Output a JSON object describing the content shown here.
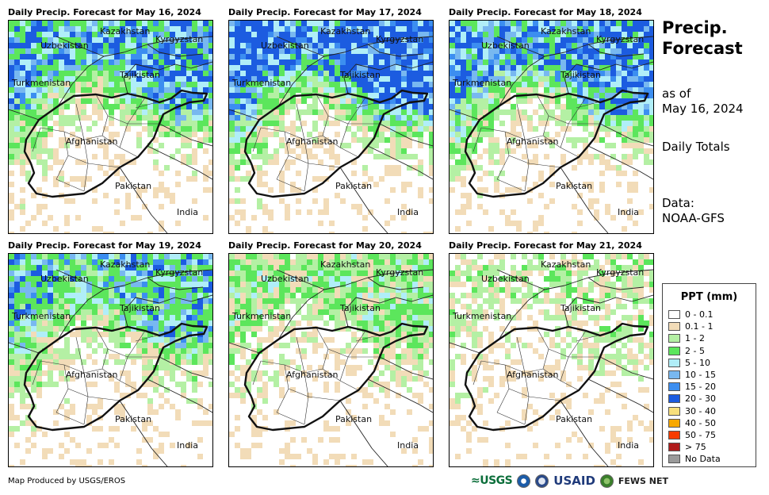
{
  "panels": [
    {
      "title": "Daily Precip. Forecast for May 16, 2024",
      "intensity": 0.85,
      "seed": 11
    },
    {
      "title": "Daily Precip. Forecast for May 17, 2024",
      "intensity": 1.0,
      "seed": 23
    },
    {
      "title": "Daily Precip. Forecast for May 18, 2024",
      "intensity": 0.9,
      "seed": 37
    },
    {
      "title": "Daily Precip. Forecast for May 19, 2024",
      "intensity": 0.75,
      "seed": 41
    },
    {
      "title": "Daily Precip. Forecast for May 20, 2024",
      "intensity": 0.5,
      "seed": 53
    },
    {
      "title": "Daily Precip. Forecast for May 21, 2024",
      "intensity": 0.3,
      "seed": 67
    }
  ],
  "country_labels": {
    "kazakhstan": "Kazakhstan",
    "uzbekistan": "Uzbekistan",
    "kyrgyzstan": "Kyrgyzstan",
    "tajikistan": "Tajikistan",
    "turkmenistan": "Turkmenistan",
    "afghanistan": "Afghanistan",
    "pakistan": "Pakistan",
    "india": "India"
  },
  "side": {
    "title_line1": "Precip.",
    "title_line2": "Forecast",
    "asof_line1": "as of",
    "asof_line2": "May 16, 2024",
    "totals": "Daily Totals",
    "data_line1": "Data:",
    "data_line2": "NOAA-GFS"
  },
  "legend": {
    "title": "PPT (mm)",
    "items": [
      {
        "label": "0 - 0.1",
        "color": "#ffffff"
      },
      {
        "label": "0.1 - 1",
        "color": "#f2dcb8"
      },
      {
        "label": "1 - 2",
        "color": "#b4f0a4"
      },
      {
        "label": "2 - 5",
        "color": "#5ce65c"
      },
      {
        "label": "5 - 10",
        "color": "#b0eef8"
      },
      {
        "label": "10 - 15",
        "color": "#78b8f0"
      },
      {
        "label": "15 - 20",
        "color": "#3c8ef0"
      },
      {
        "label": "20 - 30",
        "color": "#1c5ce0"
      },
      {
        "label": "30 - 40",
        "color": "#f8e07c"
      },
      {
        "label": "40 - 50",
        "color": "#f8a800"
      },
      {
        "label": "50 - 75",
        "color": "#f83c00"
      },
      {
        "label": "> 75",
        "color": "#b01c1c"
      },
      {
        "label": "No Data",
        "color": "#9a9a9a"
      }
    ]
  },
  "footer": {
    "credit": "Map Produced by USGS/EROS",
    "logo_usgs": "≈USGS",
    "logo_usaid": "USAID",
    "logo_fews": "FEWS NET"
  }
}
